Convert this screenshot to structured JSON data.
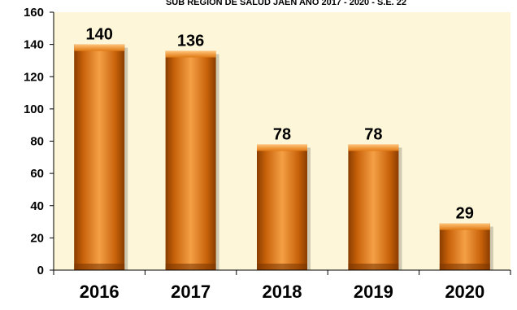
{
  "chart_data": {
    "type": "bar",
    "title": "SUB REGION DE SALUD JAEN  AÑO 2017 - 2020 -  S.E. 22",
    "categories": [
      "2016",
      "2017",
      "2018",
      "2019",
      "2020"
    ],
    "values": [
      140,
      136,
      78,
      78,
      29
    ],
    "ylim": [
      0,
      160
    ],
    "yticks": [
      0,
      20,
      40,
      60,
      80,
      100,
      120,
      140,
      160
    ],
    "xlabel": "",
    "ylabel": "",
    "grid": false,
    "legend": "none",
    "data_labels": true,
    "colors": {
      "plot_background": "#fdf6d8",
      "bar_light": "#f5a046",
      "bar_mid": "#e07a14",
      "bar_dark": "#8a3d00",
      "axis": "#000000"
    }
  }
}
